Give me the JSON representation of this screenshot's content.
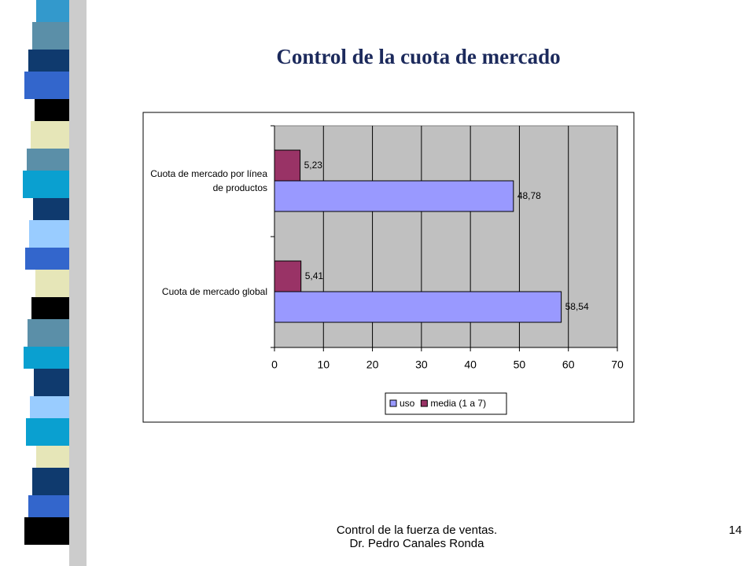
{
  "chart_data": {
    "type": "barh",
    "title": "Control de la cuota de mercado",
    "categories": [
      "Cuota de mercado global",
      "Cuota de mercado por línea de productos"
    ],
    "series": [
      {
        "name": "uso",
        "color": "#9999ff",
        "values": [
          58.54,
          48.78
        ],
        "value_labels": [
          "58,54",
          "48,78"
        ]
      },
      {
        "name": "media (1 a 7)",
        "color": "#993366",
        "values": [
          5.41,
          5.23
        ],
        "value_labels": [
          "5,41",
          "5,23"
        ]
      }
    ],
    "xlim": [
      0,
      70
    ],
    "xticks": [
      0,
      10,
      20,
      30,
      40,
      50,
      60,
      70
    ],
    "grid": true,
    "legend": "bottom"
  },
  "footer": {
    "lines": [
      "Control de la fuerza de ventas.",
      "Dr. Pedro Canales Ronda"
    ],
    "page": "14"
  }
}
